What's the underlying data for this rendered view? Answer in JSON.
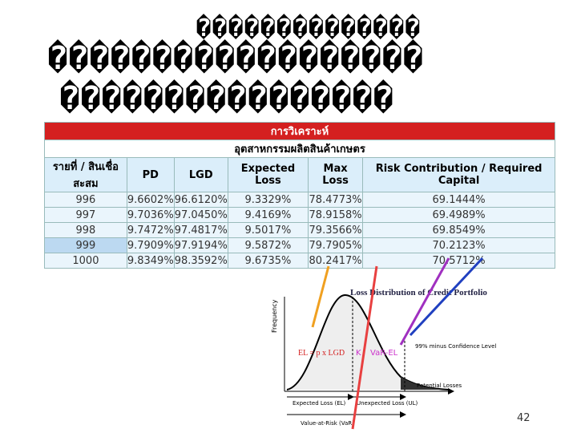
{
  "slide": {
    "title_lines": [
      "��������������",
      "������������������",
      "����������������"
    ],
    "page_number": "42"
  },
  "table": {
    "banner": "การวิเคราะห์",
    "industry": "อุตสาหกรรมผลิตสินค้าเกษตร",
    "columns": [
      "รายที่ / สินเชื่อสะสม",
      "PD",
      "LGD",
      "Expected Loss",
      "Max Loss",
      "Risk Contribution / Required Capital"
    ],
    "rows": [
      [
        "996",
        "9.6602%",
        "96.6120%",
        "9.3329%",
        "78.4773%",
        "69.1444%"
      ],
      [
        "997",
        "9.7036%",
        "97.0450%",
        "9.4169%",
        "78.9158%",
        "69.4989%"
      ],
      [
        "998",
        "9.7472%",
        "97.4817%",
        "9.5017%",
        "79.3566%",
        "69.8549%"
      ],
      [
        "999",
        "9.7909%",
        "97.9194%",
        "9.5872%",
        "79.7905%",
        "70.2123%"
      ],
      [
        "1000",
        "9.8349%",
        "98.3592%",
        "9.6735%",
        "80.2417%",
        "70.5712%"
      ]
    ]
  },
  "diagram": {
    "title": "Loss Distribution of Credit Portfolio",
    "y_axis": "Frequency",
    "el_label": "EL = p x LGD",
    "k_label": "K",
    "var_el_label": "VaR-EL",
    "confidence": "99% minus Confidence Level",
    "potential": "Potential Losses",
    "expected_loss": "Expected Loss (EL)",
    "unexpected_loss": "Unexpected Loss (UL)",
    "var": "Value-at-Risk (VaR)"
  }
}
